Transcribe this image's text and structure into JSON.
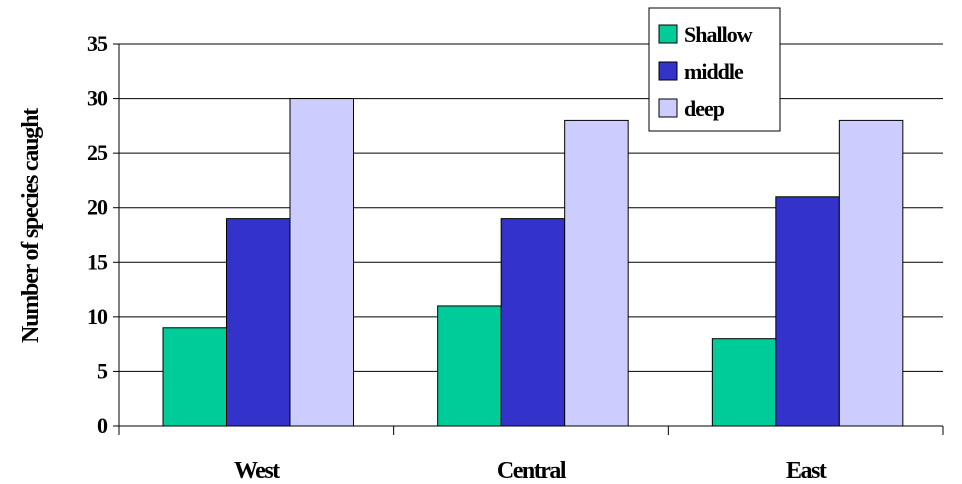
{
  "chart_data": {
    "type": "bar",
    "ylabel": "Number of species caught",
    "xlabel": "",
    "categories": [
      "West",
      "Central",
      "East"
    ],
    "series": [
      {
        "name": "Shallow",
        "color": "#00cc99",
        "values": [
          9,
          11,
          8
        ]
      },
      {
        "name": "middle",
        "color": "#3333cc",
        "values": [
          19,
          19,
          21
        ]
      },
      {
        "name": "deep",
        "color": "#ccccff",
        "values": [
          30,
          28,
          28
        ]
      }
    ],
    "ylim": [
      0,
      35
    ],
    "yticks": [
      "0",
      "5",
      "10",
      "15",
      "20",
      "25",
      "30",
      "35"
    ],
    "grid": true,
    "legend_position": "top-right"
  }
}
